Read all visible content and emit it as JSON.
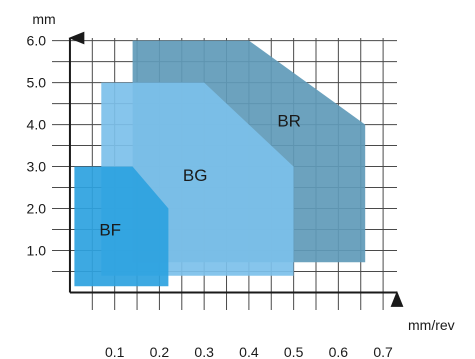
{
  "chart_data": {
    "type": "area",
    "title": "",
    "xlabel": "mm/rev",
    "ylabel": "mm",
    "xlim": [
      -0.02,
      0.74
    ],
    "ylim": [
      -0.75,
      6.3
    ],
    "x_ticks": [
      "0.1",
      "0.2",
      "0.3",
      "0.4",
      "0.5",
      "0.6",
      "0.7"
    ],
    "x_tick_values": [
      0.1,
      0.2,
      0.3,
      0.4,
      0.5,
      0.6,
      0.7
    ],
    "y_ticks": [
      "1.0",
      "2.0",
      "3.0",
      "4.0",
      "5.0",
      "6.0"
    ],
    "y_tick_values": [
      1,
      2,
      3,
      4,
      5,
      6
    ],
    "grid": true,
    "regions": [
      {
        "name": "BR",
        "color": "#5f9ab8",
        "points": [
          [
            0.14,
            6.0
          ],
          [
            0.4,
            6.0
          ],
          [
            0.66,
            4.0
          ],
          [
            0.66,
            0.72
          ],
          [
            0.14,
            0.72
          ]
        ],
        "label_at": [
          0.49,
          4.1
        ]
      },
      {
        "name": "BG",
        "color": "#7cc0ea",
        "points": [
          [
            0.07,
            5.0
          ],
          [
            0.3,
            5.0
          ],
          [
            0.5,
            3.0
          ],
          [
            0.5,
            0.4
          ],
          [
            0.07,
            0.4
          ]
        ],
        "label_at": [
          0.28,
          2.8
        ]
      },
      {
        "name": "BF",
        "color": "#2da2df",
        "points": [
          [
            0.01,
            3.0
          ],
          [
            0.14,
            3.0
          ],
          [
            0.22,
            2.0
          ],
          [
            0.22,
            0.15
          ],
          [
            0.01,
            0.15
          ]
        ],
        "label_at": [
          0.09,
          1.5
        ]
      }
    ]
  }
}
